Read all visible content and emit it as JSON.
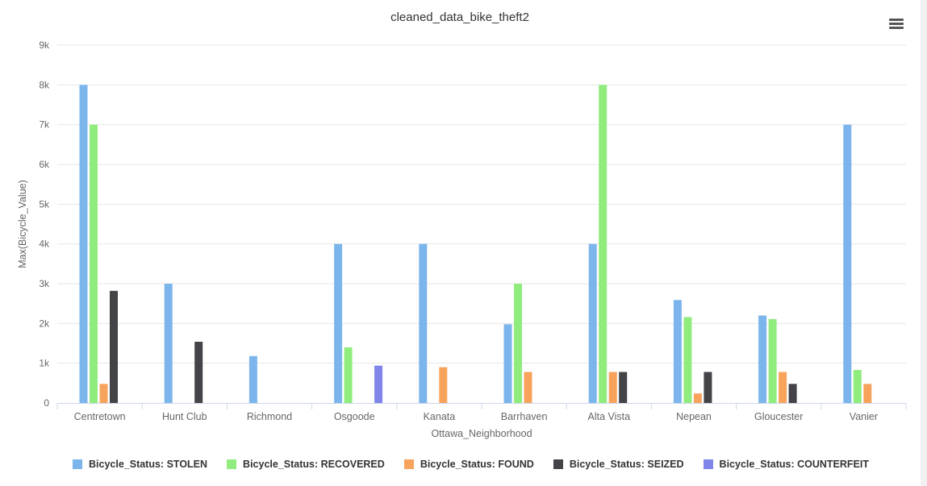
{
  "chart_data": {
    "type": "bar",
    "title": "cleaned_data_bike_theft2",
    "xlabel": "Ottawa_Neighborhood",
    "ylabel": "Max(Bicycle_Value)",
    "ylim": [
      0,
      9000
    ],
    "yticks": [
      0,
      1000,
      2000,
      3000,
      4000,
      5000,
      6000,
      7000,
      8000,
      9000
    ],
    "ytick_labels": [
      "0",
      "1k",
      "2k",
      "3k",
      "4k",
      "5k",
      "6k",
      "7k",
      "8k",
      "9k"
    ],
    "grid": true,
    "legend_position": "bottom-left",
    "categories": [
      "Centretown",
      "Hunt Club",
      "Richmond",
      "Osgoode",
      "Kanata",
      "Barrhaven",
      "Alta Vista",
      "Nepean",
      "Gloucester",
      "Vanier"
    ],
    "series": [
      {
        "name": "Bicycle_Status: STOLEN",
        "color": "#7cb5ec",
        "values": [
          8000,
          3000,
          1180,
          4000,
          4000,
          1980,
          4000,
          2590,
          2200,
          7000
        ]
      },
      {
        "name": "Bicycle_Status: RECOVERED",
        "color": "#90ed7d",
        "values": [
          7000,
          null,
          null,
          1400,
          null,
          3000,
          8000,
          2160,
          2110,
          830
        ]
      },
      {
        "name": "Bicycle_Status: FOUND",
        "color": "#f7a35c",
        "values": [
          480,
          null,
          null,
          null,
          900,
          780,
          780,
          240,
          780,
          480
        ]
      },
      {
        "name": "Bicycle_Status: SEIZED",
        "color": "#434348",
        "values": [
          2820,
          1540,
          null,
          null,
          null,
          null,
          780,
          780,
          480,
          null
        ]
      },
      {
        "name": "Bicycle_Status: COUNTERFEIT",
        "color": "#8085e9",
        "values": [
          null,
          null,
          null,
          940,
          null,
          null,
          null,
          null,
          null,
          null
        ]
      }
    ]
  },
  "menu": {
    "icon": "hamburger-menu-icon"
  }
}
